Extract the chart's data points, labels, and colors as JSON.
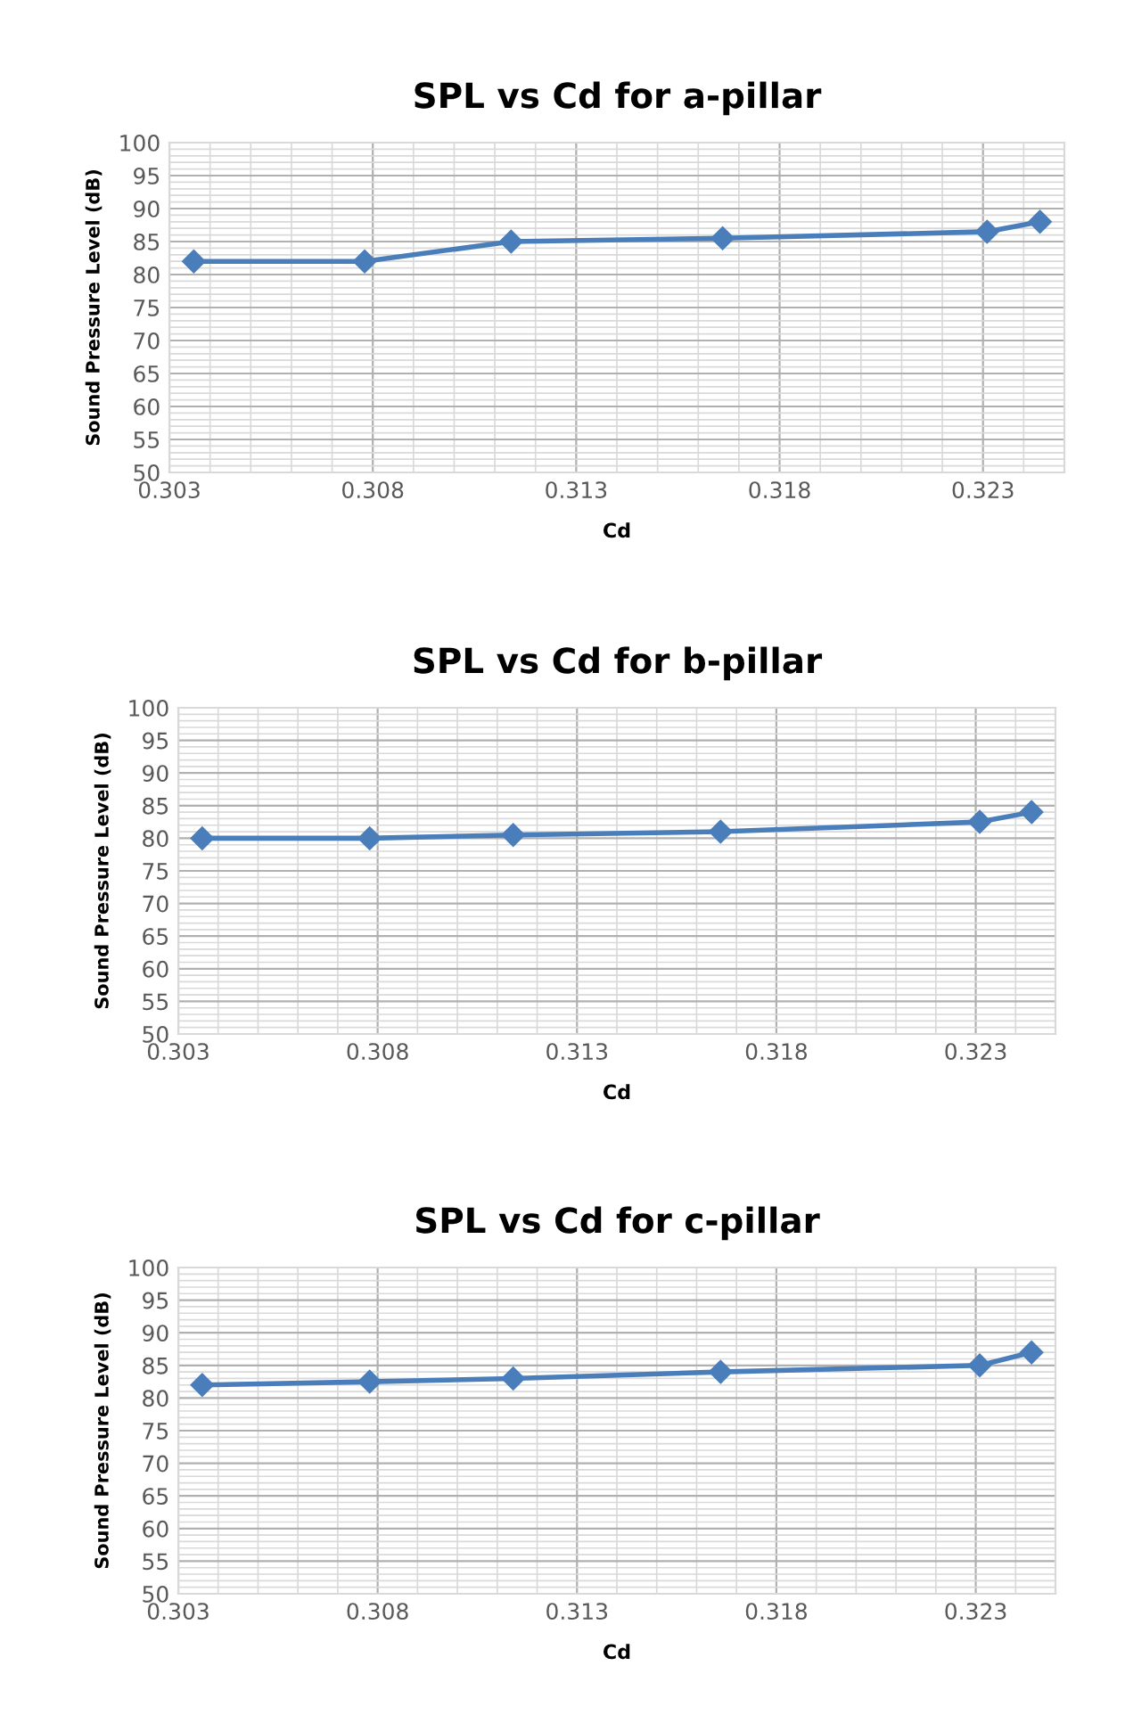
{
  "chart_data": [
    {
      "type": "line",
      "title": "SPL vs Cd for a-pillar",
      "xlabel": "Cd",
      "ylabel": "Sound Pressure Level (dB)",
      "xlim": [
        0.303,
        0.325
      ],
      "xticks": [
        {
          "value": 0.303,
          "label": "0.303"
        },
        {
          "value": 0.308,
          "label": "0.308"
        },
        {
          "value": 0.313,
          "label": "0.313"
        },
        {
          "value": 0.318,
          "label": "0.318"
        },
        {
          "value": 0.323,
          "label": "0.323"
        }
      ],
      "ylim": [
        50,
        100
      ],
      "yticks": [
        50,
        55,
        60,
        65,
        70,
        75,
        80,
        85,
        90,
        95,
        100
      ],
      "grid": true,
      "marker": "diamond",
      "line_style": "solid",
      "series": [
        {
          "color": "#4a7ebb",
          "x": [
            0.3036,
            0.3078,
            0.3114,
            0.3166,
            0.3231,
            0.3244
          ],
          "values": [
            82,
            82,
            85,
            85.5,
            86.5,
            88
          ]
        }
      ]
    },
    {
      "type": "line",
      "title": "SPL vs Cd for b-pillar",
      "xlabel": "Cd",
      "ylabel": "Sound Pressure Level (dB)",
      "xlim": [
        0.303,
        0.325
      ],
      "xticks": [
        {
          "value": 0.303,
          "label": "0.303"
        },
        {
          "value": 0.308,
          "label": "0.308"
        },
        {
          "value": 0.313,
          "label": "0.313"
        },
        {
          "value": 0.318,
          "label": "0.318"
        },
        {
          "value": 0.323,
          "label": "0.323"
        }
      ],
      "ylim": [
        50,
        100
      ],
      "yticks": [
        50,
        55,
        60,
        65,
        70,
        75,
        80,
        85,
        90,
        95,
        100
      ],
      "grid": true,
      "marker": "diamond",
      "line_style": "solid",
      "series": [
        {
          "color": "#4a7ebb",
          "x": [
            0.3036,
            0.3078,
            0.3114,
            0.3166,
            0.3231,
            0.3244
          ],
          "values": [
            80,
            80,
            80.5,
            81,
            82.5,
            84
          ]
        }
      ]
    },
    {
      "type": "line",
      "title": "SPL vs Cd for c-pillar",
      "xlabel": "Cd",
      "ylabel": "Sound Pressure Level (dB)",
      "xlim": [
        0.303,
        0.325
      ],
      "xticks": [
        {
          "value": 0.303,
          "label": "0.303"
        },
        {
          "value": 0.308,
          "label": "0.308"
        },
        {
          "value": 0.313,
          "label": "0.313"
        },
        {
          "value": 0.318,
          "label": "0.318"
        },
        {
          "value": 0.323,
          "label": "0.323"
        }
      ],
      "ylim": [
        50,
        100
      ],
      "yticks": [
        50,
        55,
        60,
        65,
        70,
        75,
        80,
        85,
        90,
        95,
        100
      ],
      "grid": true,
      "marker": "diamond",
      "line_style": "solid",
      "series": [
        {
          "color": "#4a7ebb",
          "x": [
            0.3036,
            0.3078,
            0.3114,
            0.3166,
            0.3231,
            0.3244
          ],
          "values": [
            82,
            82.5,
            83,
            84,
            85,
            87
          ]
        }
      ]
    }
  ]
}
